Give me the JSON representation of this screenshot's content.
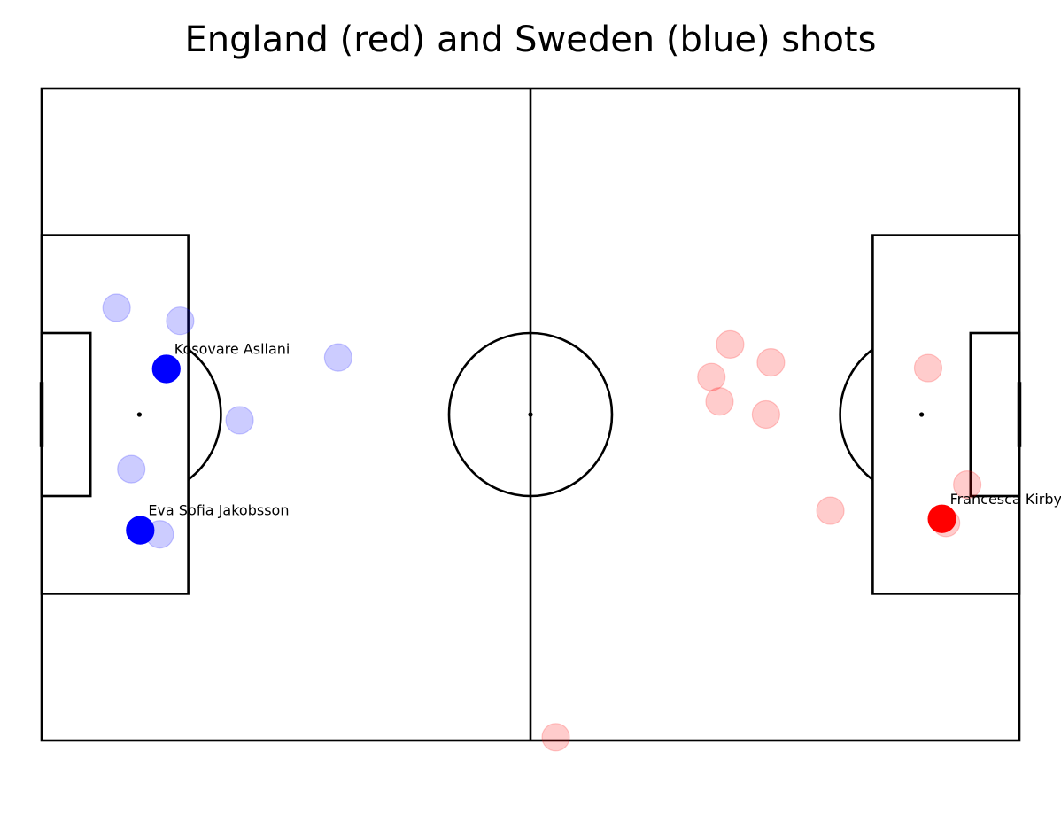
{
  "chart_data": {
    "type": "scatter",
    "title": "England (red) and Sweden (blue) shots",
    "pitch_length": 120,
    "pitch_width": 80,
    "series": [
      {
        "color": "#ff0000",
        "points": [
          {
            "x": 110.5,
            "y": 52.8,
            "goal": true,
            "label": "Francesca Kirby"
          },
          {
            "x": 113.6,
            "y": 48.6,
            "goal": false
          },
          {
            "x": 108.8,
            "y": 34.3,
            "goal": false
          },
          {
            "x": 111.0,
            "y": 53.3,
            "goal": false
          },
          {
            "x": 96.8,
            "y": 51.8,
            "goal": false
          },
          {
            "x": 84.5,
            "y": 31.4,
            "goal": false
          },
          {
            "x": 89.5,
            "y": 33.6,
            "goal": false
          },
          {
            "x": 82.2,
            "y": 35.4,
            "goal": false
          },
          {
            "x": 83.2,
            "y": 38.4,
            "goal": false
          },
          {
            "x": 88.9,
            "y": 40.0,
            "goal": false
          },
          {
            "x": 63.1,
            "y": 79.6,
            "goal": false
          }
        ]
      },
      {
        "color": "#0000ff",
        "points": [
          {
            "x": 15.3,
            "y": 34.4,
            "goal": true,
            "label": "Kosovare Asllani"
          },
          {
            "x": 12.1,
            "y": 54.2,
            "goal": true,
            "label": "Eva Sofia Jakobsson"
          },
          {
            "x": 9.2,
            "y": 26.9,
            "goal": false
          },
          {
            "x": 17.0,
            "y": 28.5,
            "goal": false
          },
          {
            "x": 36.4,
            "y": 33.0,
            "goal": false
          },
          {
            "x": 24.3,
            "y": 40.7,
            "goal": false
          },
          {
            "x": 11.0,
            "y": 46.7,
            "goal": false
          },
          {
            "x": 14.5,
            "y": 54.7,
            "goal": false
          }
        ]
      }
    ]
  }
}
